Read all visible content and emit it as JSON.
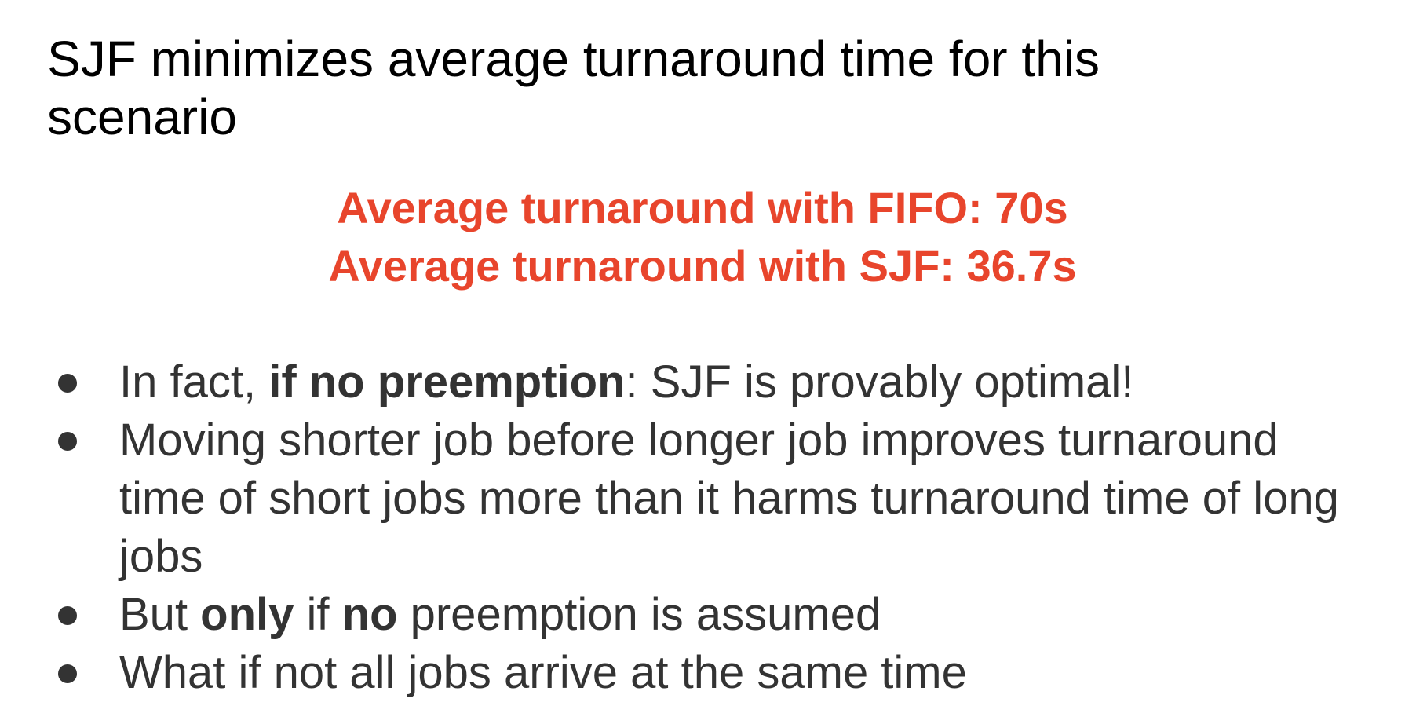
{
  "slide": {
    "title": "SJF minimizes average turnaround time for this scenario",
    "highlight": {
      "color": "#e8452c",
      "line1": "Average turnaround with FIFO: 70s",
      "line2": "Average turnaround with SJF: 36.7s"
    },
    "bullets": [
      {
        "pre": "In fact, ",
        "bold1": "if no preemption",
        "post": ": SJF is provably optimal!"
      },
      {
        "text": "Moving shorter job before longer job improves turnaround time of short jobs more than it harms turnaround time of long jobs"
      },
      {
        "pre": "But ",
        "bold1": "only",
        "mid": " if ",
        "bold2": "no",
        "post": " preemption is assumed"
      },
      {
        "text": "What if not all jobs arrive at the same time"
      }
    ]
  }
}
